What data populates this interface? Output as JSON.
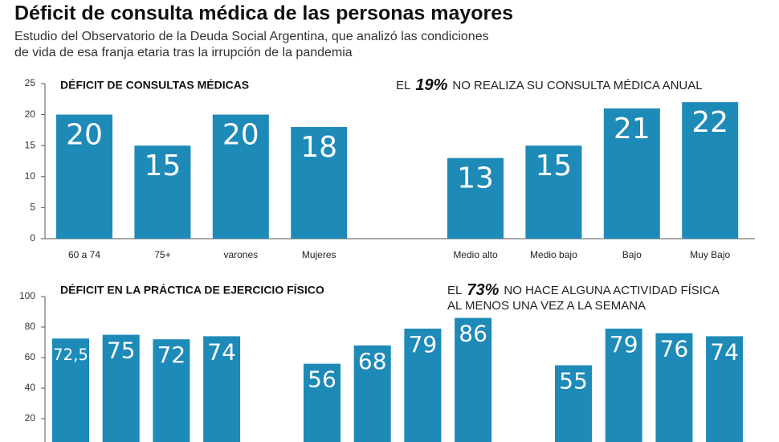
{
  "header": {
    "title": "Déficit de consulta médica de las personas mayores",
    "subtitle": [
      "Estudio del Observatorio de la Deuda Social Argentina, que analizó las condiciones",
      "de vida de esa franja etaria tras la irrupción de la pandemia"
    ]
  },
  "chart_data": [
    {
      "type": "bar",
      "title": "DÉFICIT DE CONSULTAS MÉDICAS",
      "annotation": {
        "prefix": "EL",
        "highlight": "19%",
        "suffix": [
          "NO REALIZA SU CONSULTA MÉDICA ANUAL"
        ]
      },
      "categories": [
        "60 a 74",
        "75+",
        "varones",
        "Mujeres",
        "Medio alto",
        "Medio bajo",
        "Bajo",
        "Muy Bajo"
      ],
      "values": [
        20,
        15,
        20,
        18,
        13,
        15,
        21,
        22
      ],
      "color": "#1e8ab8",
      "ylim": [
        0,
        25
      ],
      "yticks": [
        0,
        5,
        10,
        15,
        20,
        25
      ]
    },
    {
      "type": "bar",
      "title": "DÉFICIT EN LA PRÁCTICA DE EJERCICIO FÍSICO",
      "annotation": {
        "prefix": "EL",
        "highlight": "73%",
        "suffix": [
          "NO HACE ALGUNA ACTIVIDAD FÍSICA",
          "AL MENOS UNA VEZ A LA SEMANA"
        ]
      },
      "values": [
        72.5,
        75,
        72,
        74,
        56,
        68,
        79,
        86,
        55,
        79,
        76,
        74
      ],
      "value_labels": [
        "72,5",
        "75",
        "72",
        "74",
        "56",
        "68",
        "79",
        "86",
        "55",
        "79",
        "76",
        "74"
      ],
      "color": "#1e8ab8",
      "ylim": [
        0,
        100
      ],
      "yticks": [
        20,
        40,
        60,
        80,
        100
      ]
    }
  ]
}
